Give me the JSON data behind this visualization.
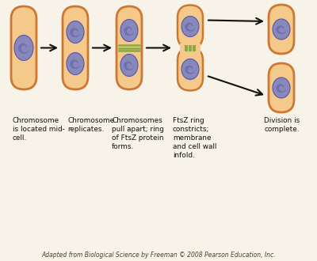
{
  "bg_color": "#f8f3e8",
  "cell_fill": "#f5c98a",
  "cell_edge": "#cc7733",
  "cell_lw": 2.0,
  "chromosome_fill": "#8888bb",
  "chromosome_edge": "#5555aa",
  "green_color": "#88aa44",
  "arrow_color": "#111111",
  "text_color": "#111111",
  "citation_color": "#444433",
  "labels": [
    "Chromosome\nis located mid-\ncell.",
    "Chromosome\nreplicates.",
    "Chromosomes\npull apart; ring\nof FtsZ protein\nforms.",
    "FtsZ ring\nconstricts;\nmembrane\nand cell wall\ninfold.",
    "Division is\ncomplete."
  ],
  "citation": "Adapted from Biological Science by Freeman © 2008 Pearson Education, Inc."
}
